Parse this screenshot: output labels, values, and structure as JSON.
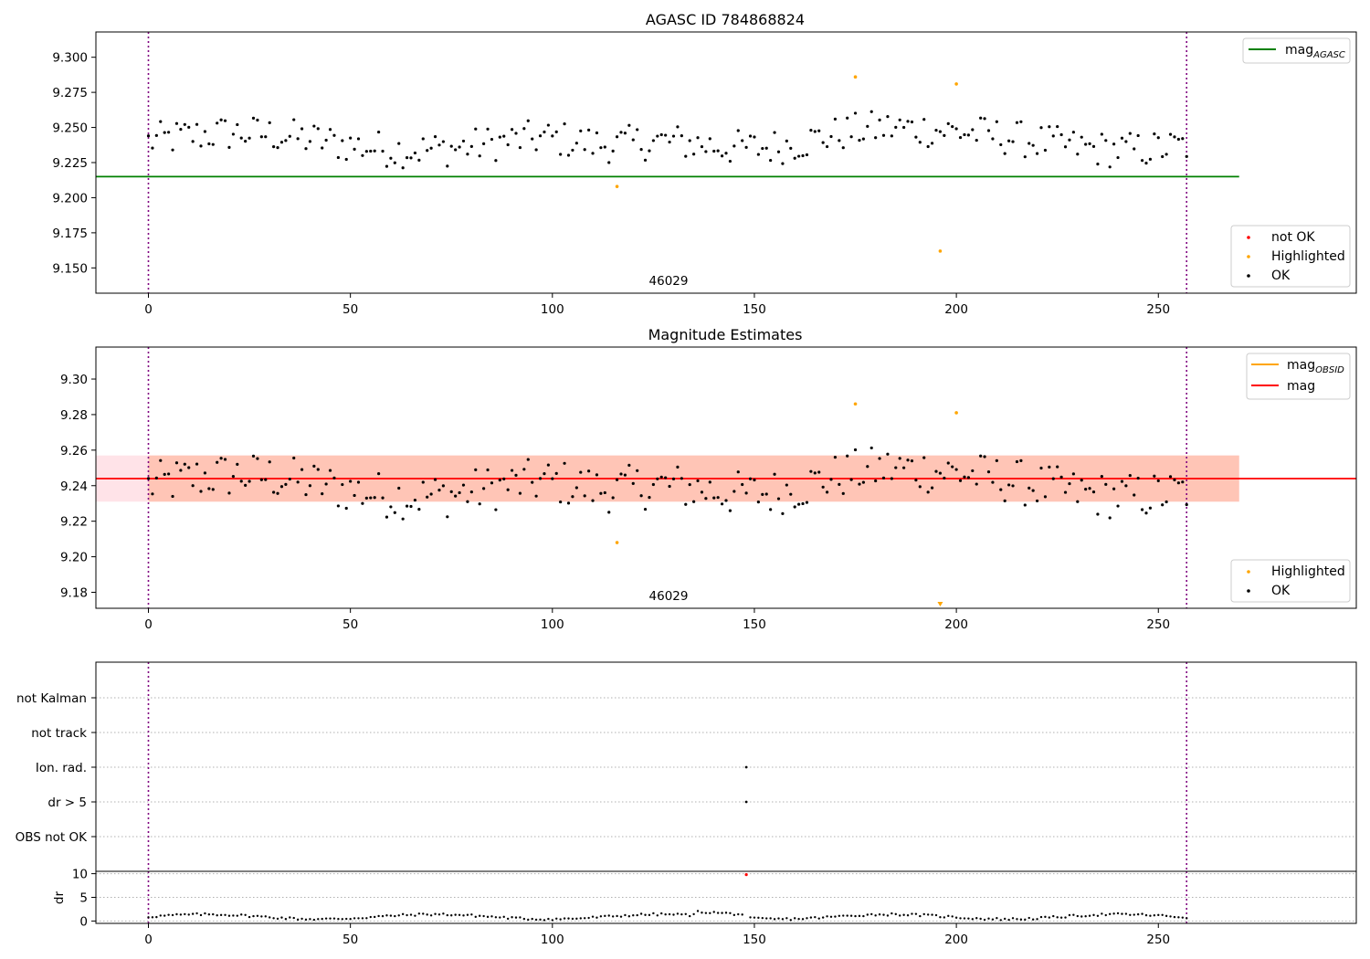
{
  "chart_data": [
    {
      "type": "scatter",
      "title": "AGASC ID 784868824",
      "annotation": "46029",
      "xlim": [
        -13,
        299
      ],
      "ylim": [
        9.132,
        9.318
      ],
      "x_ticks": [
        0,
        50,
        100,
        150,
        200,
        250
      ],
      "y_ticks": [
        9.15,
        9.175,
        9.2,
        9.225,
        9.25,
        9.275,
        9.3
      ],
      "y_tick_labels": [
        "9.150",
        "9.175",
        "9.200",
        "9.225",
        "9.250",
        "9.275",
        "9.300"
      ],
      "vlines": [
        0,
        257
      ],
      "hlines": [
        {
          "name": "mag",
          "subscript": "AGASC",
          "y": 9.215,
          "x_range": [
            -13,
            270
          ],
          "color": "#008000"
        }
      ],
      "legend_lines": [
        {
          "name": "mag",
          "subscript": "AGASC",
          "color": "#008000"
        }
      ],
      "legend_points": [
        {
          "name": "not OK",
          "color": "#ff0000"
        },
        {
          "name": "Highlighted",
          "color": "#ffa500"
        },
        {
          "name": "OK",
          "color": "#000000"
        }
      ],
      "highlighted_points": [
        [
          116,
          9.208
        ],
        [
          175,
          9.286
        ],
        [
          196,
          9.162
        ],
        [
          200,
          9.281
        ]
      ]
    },
    {
      "type": "scatter",
      "title": "Magnitude Estimates",
      "annotation": "46029",
      "xlim": [
        -13,
        299
      ],
      "ylim": [
        9.171,
        9.318
      ],
      "x_ticks": [
        0,
        50,
        100,
        150,
        200,
        250
      ],
      "y_ticks": [
        9.18,
        9.2,
        9.22,
        9.24,
        9.26,
        9.28,
        9.3
      ],
      "y_tick_labels": [
        "9.18",
        "9.20",
        "9.22",
        "9.24",
        "9.26",
        "9.28",
        "9.30"
      ],
      "vlines": [
        0,
        257
      ],
      "band_outer": {
        "x_range": [
          -13,
          270
        ],
        "y_range": [
          9.231,
          9.257
        ],
        "color": "#ffc0cb"
      },
      "band_inner": {
        "x_range": [
          0,
          270
        ],
        "y_range": [
          9.231,
          9.257
        ],
        "color": "#ffa07a"
      },
      "hlines": [
        {
          "name": "mag",
          "y": 9.244,
          "x_range": [
            -13,
            299
          ],
          "color": "#ff0000"
        }
      ],
      "legend_lines": [
        {
          "name": "mag",
          "subscript": "OBSID",
          "color": "#ffa500"
        },
        {
          "name": "mag",
          "subscript": "",
          "color": "#ff0000"
        }
      ],
      "legend_points": [
        {
          "name": "Highlighted",
          "color": "#ffa500"
        },
        {
          "name": "OK",
          "color": "#000000"
        }
      ],
      "highlighted_points": [
        [
          116,
          9.208
        ],
        [
          175,
          9.286
        ],
        [
          200,
          9.281
        ]
      ],
      "offscale_marker": {
        "x": 196,
        "direction": "down",
        "color": "#ffa500"
      }
    },
    {
      "type": "scatter",
      "flags_panel": {
        "categories": [
          "not Kalman",
          "not track",
          "Ion. rad.",
          "dr > 5",
          "OBS not OK"
        ],
        "points": [
          [
            148,
            "Ion. rad."
          ],
          [
            148,
            "dr > 5"
          ]
        ]
      },
      "dr_panel": {
        "ylabel": "dr",
        "y_ticks": [
          0,
          5,
          10
        ],
        "ylim": [
          -0.5,
          10.5
        ],
        "flagged_points": [
          [
            148,
            9.8
          ]
        ]
      },
      "x_ticks": [
        0,
        50,
        100,
        150,
        200,
        250
      ],
      "vlines": [
        0,
        257
      ]
    }
  ]
}
